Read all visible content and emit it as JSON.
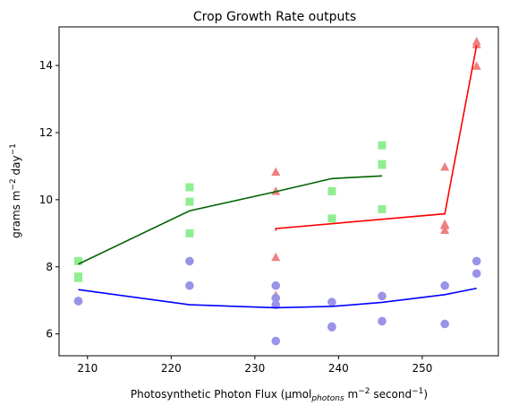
{
  "chart_data": {
    "type": "scatter",
    "title": "Crop Growth Rate outputs",
    "xlabel_parts": {
      "main": "Photosynthetic Photon Flux (µmol",
      "subscript": "photons",
      "mid": " m",
      "sup1": "−2",
      "tail": " second",
      "sup2": "−1",
      "close": ")"
    },
    "ylabel_parts": {
      "main": "grams m",
      "sup1": "−2",
      "mid": " day",
      "sup2": "−1"
    },
    "xlim": [
      206.6,
      259.1
    ],
    "ylim": [
      5.35,
      15.15
    ],
    "xticks": [
      210,
      220,
      230,
      240,
      250
    ],
    "yticks": [
      6,
      8,
      10,
      12,
      14
    ],
    "grid": false,
    "series": [
      {
        "marker": "square",
        "color": "#90ee90",
        "points": [
          [
            208.9,
            8.17
          ],
          [
            208.9,
            7.67
          ],
          [
            208.9,
            7.71
          ],
          [
            222.2,
            10.37
          ],
          [
            222.2,
            9.94
          ],
          [
            222.2,
            9.0
          ],
          [
            239.2,
            10.25
          ],
          [
            239.2,
            9.44
          ],
          [
            245.2,
            11.62
          ],
          [
            245.2,
            11.06
          ],
          [
            245.2,
            11.04
          ],
          [
            245.2,
            9.72
          ]
        ],
        "fit_color": "#006400",
        "fit": [
          [
            208.9,
            8.08
          ],
          [
            222.2,
            9.67
          ],
          [
            232.5,
            10.24
          ],
          [
            239.2,
            10.63
          ],
          [
            245.2,
            10.71
          ]
        ]
      },
      {
        "marker": "triangle",
        "color": "#f08080",
        "points": [
          [
            232.5,
            10.82
          ],
          [
            232.5,
            10.25
          ],
          [
            232.5,
            8.28
          ],
          [
            232.5,
            7.14
          ],
          [
            252.7,
            10.97
          ],
          [
            252.7,
            9.27
          ],
          [
            252.7,
            9.23
          ],
          [
            252.7,
            9.09
          ],
          [
            256.5,
            14.71
          ],
          [
            256.5,
            14.62
          ],
          [
            256.5,
            13.98
          ]
        ],
        "fit_color": "#ff0000",
        "fit": [
          [
            232.5,
            9.08
          ],
          [
            232.5,
            9.14
          ],
          [
            252.7,
            9.58
          ],
          [
            256.5,
            14.6
          ]
        ]
      },
      {
        "marker": "circle",
        "color": "#9a93e8",
        "points": [
          [
            208.9,
            6.98
          ],
          [
            208.9,
            6.98
          ],
          [
            222.2,
            8.17
          ],
          [
            222.2,
            7.44
          ],
          [
            232.5,
            7.44
          ],
          [
            232.5,
            7.07
          ],
          [
            232.5,
            6.87
          ],
          [
            232.5,
            5.79
          ],
          [
            239.2,
            6.95
          ],
          [
            239.2,
            6.22
          ],
          [
            239.2,
            6.2
          ],
          [
            245.2,
            7.13
          ],
          [
            245.2,
            6.38
          ],
          [
            252.7,
            7.44
          ],
          [
            252.7,
            6.3
          ],
          [
            256.5,
            8.17
          ],
          [
            256.5,
            7.8
          ]
        ],
        "fit_color": "#0000ff",
        "fit": [
          [
            208.9,
            7.32
          ],
          [
            222.2,
            6.87
          ],
          [
            232.5,
            6.78
          ],
          [
            239.2,
            6.82
          ],
          [
            245.2,
            6.94
          ],
          [
            252.7,
            7.17
          ],
          [
            256.5,
            7.36
          ]
        ]
      }
    ]
  }
}
